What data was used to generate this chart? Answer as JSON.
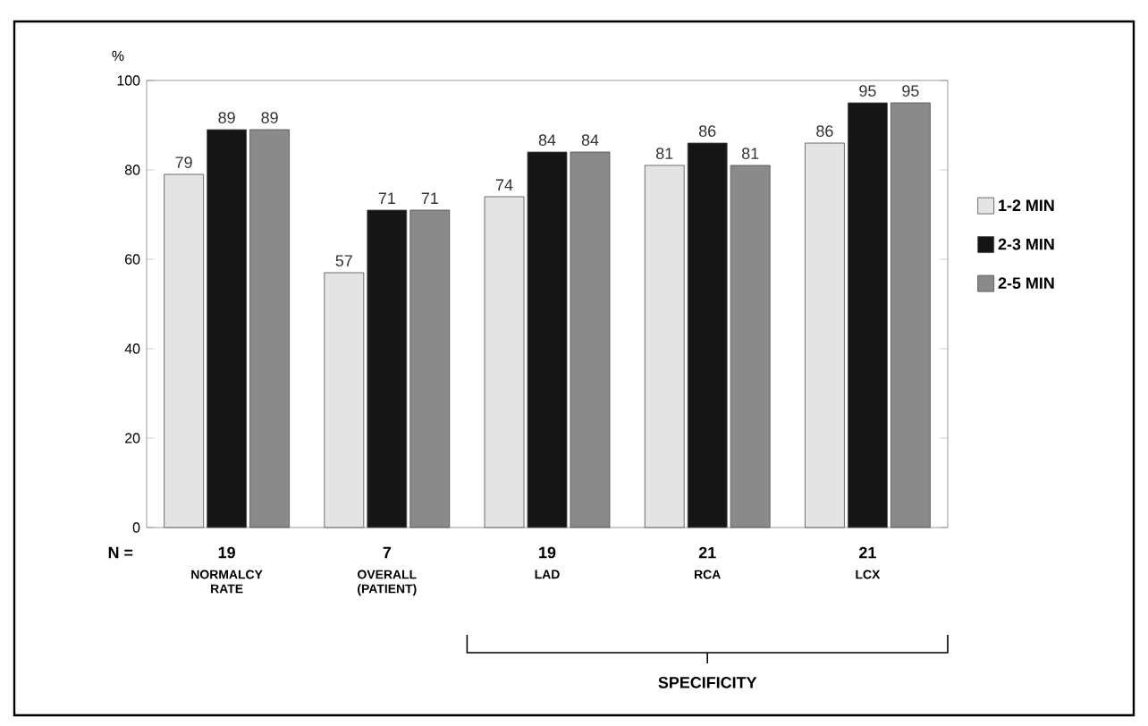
{
  "chart_data": {
    "type": "bar",
    "ylabel": "%",
    "categories": [
      "NORMALCY RATE",
      "OVERALL (PATIENT)",
      "LAD",
      "RCA",
      "LCX"
    ],
    "series": [
      {
        "name": "1-2 MIN",
        "color": "#e4e4e4",
        "values": [
          79,
          57,
          74,
          81,
          86
        ]
      },
      {
        "name": "2-3 MIN",
        "color": "#151515",
        "values": [
          89,
          71,
          84,
          86,
          95
        ]
      },
      {
        "name": "2-5 MIN",
        "color": "#8a8a8a",
        "values": [
          89,
          71,
          84,
          81,
          95
        ]
      }
    ],
    "ylim": [
      0,
      100
    ],
    "yticks": [
      0,
      20,
      40,
      60,
      80,
      100
    ],
    "data_labels": true,
    "legend": "right",
    "annotations": [
      "N =",
      "19",
      "7",
      "19",
      "21",
      "21",
      "SPECIFICITY"
    ]
  }
}
